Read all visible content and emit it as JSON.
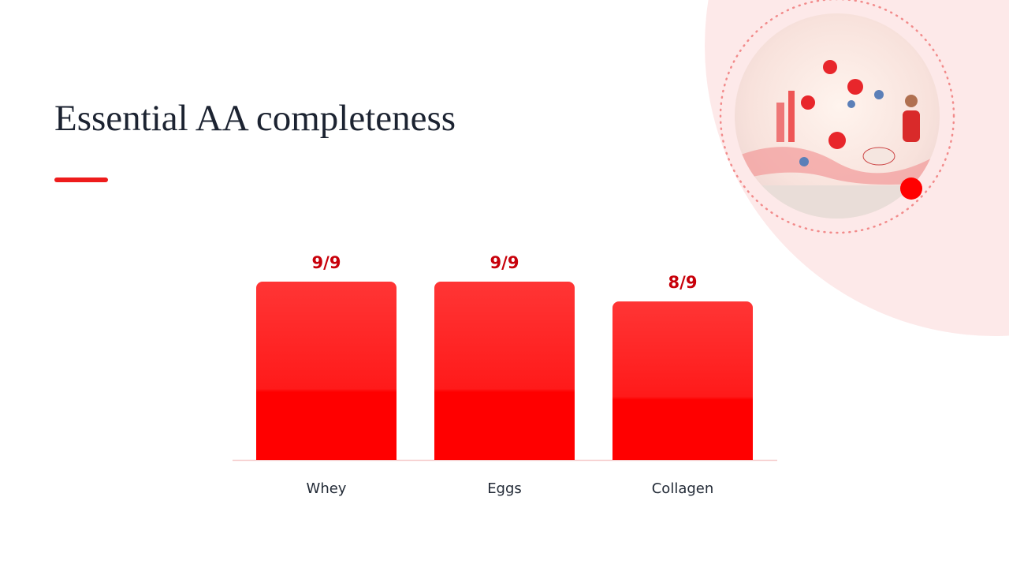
{
  "chart_data": {
    "type": "bar",
    "title": "Essential AA completeness",
    "categories": [
      "Whey",
      "Eggs",
      "Collagen"
    ],
    "values": [
      9,
      9,
      8
    ],
    "value_labels": [
      "9/9",
      "9/9",
      "8/9"
    ],
    "color": "#ff0000"
  }
}
